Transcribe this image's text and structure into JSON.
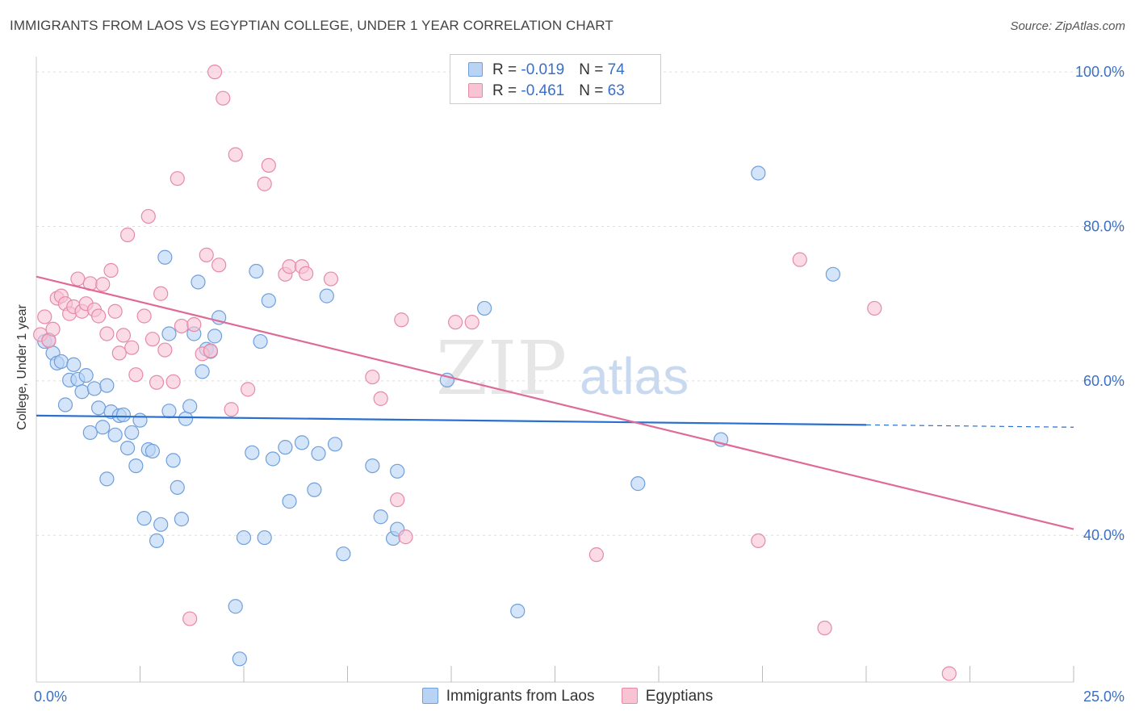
{
  "title": "IMMIGRANTS FROM LAOS VS EGYPTIAN COLLEGE, UNDER 1 YEAR CORRELATION CHART",
  "source": "Source: ZipAtlas.com",
  "watermark": {
    "zip": "ZIP",
    "atlas": "atlas"
  },
  "colors": {
    "blue_fill": "#b9d3f5",
    "blue_stroke": "#6f9fdc",
    "blue_line": "#2a6fce",
    "pink_fill": "#f8c3d3",
    "pink_stroke": "#e68aa8",
    "pink_line": "#e06a97",
    "tick_label": "#3a6fc4",
    "grid": "#dddddd"
  },
  "legend": {
    "r_label": "R = ",
    "n_label": "N = ",
    "series": [
      {
        "r": "-0.019",
        "n": "74"
      },
      {
        "r": "-0.461",
        "n": "63"
      }
    ]
  },
  "chart_data": {
    "type": "scatter",
    "title": "IMMIGRANTS FROM LAOS VS EGYPTIAN COLLEGE, UNDER 1 YEAR CORRELATION CHART",
    "xlabel": "",
    "ylabel": "College, Under 1 year",
    "xlim": [
      0,
      25
    ],
    "ylim": [
      21,
      102
    ],
    "x_tick_labels": [
      {
        "value": 0,
        "label": "0.0%"
      },
      {
        "value": 25,
        "label": "25.0%"
      }
    ],
    "y_tick_labels": [
      {
        "value": 40,
        "label": "40.0%"
      },
      {
        "value": 60,
        "label": "60.0%"
      },
      {
        "value": 80,
        "label": "80.0%"
      },
      {
        "value": 100,
        "label": "100.0%"
      }
    ],
    "x_minor_ticks": [
      2.5,
      5,
      7.5,
      10,
      12.5,
      15,
      17.5,
      20,
      22.5,
      25
    ],
    "grid": true,
    "legend_position": "top-center",
    "series": [
      {
        "name": "Immigrants from Laos",
        "r": -0.019,
        "n": 74,
        "trend": {
          "x": [
            0,
            20
          ],
          "y": [
            55.5,
            54.3
          ],
          "dashed_to": [
            25,
            54.0
          ]
        },
        "points": [
          [
            0.2,
            65.1
          ],
          [
            0.3,
            65.3
          ],
          [
            0.4,
            63.6
          ],
          [
            0.5,
            62.3
          ],
          [
            0.6,
            62.5
          ],
          [
            0.7,
            56.9
          ],
          [
            0.8,
            60.1
          ],
          [
            0.9,
            62.1
          ],
          [
            1.0,
            60.2
          ],
          [
            1.1,
            58.6
          ],
          [
            1.2,
            60.7
          ],
          [
            1.3,
            53.3
          ],
          [
            1.4,
            59.0
          ],
          [
            1.5,
            56.5
          ],
          [
            1.6,
            54.0
          ],
          [
            1.7,
            59.4
          ],
          [
            1.7,
            47.3
          ],
          [
            1.8,
            56.0
          ],
          [
            1.9,
            53.0
          ],
          [
            2.0,
            55.5
          ],
          [
            2.1,
            55.6
          ],
          [
            2.2,
            51.3
          ],
          [
            2.3,
            53.3
          ],
          [
            2.4,
            49.0
          ],
          [
            2.5,
            54.9
          ],
          [
            2.6,
            42.2
          ],
          [
            2.7,
            51.1
          ],
          [
            2.8,
            50.9
          ],
          [
            2.9,
            39.3
          ],
          [
            3.0,
            41.4
          ],
          [
            3.1,
            76.0
          ],
          [
            3.2,
            56.1
          ],
          [
            3.2,
            66.1
          ],
          [
            3.3,
            49.7
          ],
          [
            3.4,
            46.2
          ],
          [
            3.5,
            42.1
          ],
          [
            3.6,
            55.1
          ],
          [
            3.7,
            56.7
          ],
          [
            3.8,
            66.1
          ],
          [
            3.9,
            72.8
          ],
          [
            4.0,
            61.2
          ],
          [
            4.1,
            64.1
          ],
          [
            4.2,
            63.8
          ],
          [
            4.3,
            65.8
          ],
          [
            4.4,
            68.2
          ],
          [
            4.8,
            30.8
          ],
          [
            4.9,
            24.0
          ],
          [
            5.0,
            39.7
          ],
          [
            5.2,
            50.7
          ],
          [
            5.3,
            74.2
          ],
          [
            5.4,
            65.1
          ],
          [
            5.5,
            39.7
          ],
          [
            5.6,
            70.4
          ],
          [
            5.7,
            49.9
          ],
          [
            6.0,
            51.4
          ],
          [
            6.1,
            44.4
          ],
          [
            6.4,
            52.0
          ],
          [
            6.7,
            45.9
          ],
          [
            6.8,
            50.6
          ],
          [
            7.0,
            71.0
          ],
          [
            7.2,
            51.8
          ],
          [
            7.4,
            37.6
          ],
          [
            8.1,
            49.0
          ],
          [
            8.3,
            42.4
          ],
          [
            8.6,
            39.6
          ],
          [
            8.7,
            48.3
          ],
          [
            8.7,
            40.8
          ],
          [
            9.9,
            60.1
          ],
          [
            10.8,
            69.4
          ],
          [
            11.6,
            30.2
          ],
          [
            14.5,
            46.7
          ],
          [
            16.5,
            52.4
          ],
          [
            17.4,
            86.9
          ],
          [
            19.2,
            73.8
          ]
        ]
      },
      {
        "name": "Egyptians",
        "r": -0.461,
        "n": 63,
        "trend": {
          "x": [
            0,
            25
          ],
          "y": [
            73.5,
            40.8
          ]
        },
        "points": [
          [
            0.1,
            66.0
          ],
          [
            0.2,
            68.3
          ],
          [
            0.3,
            65.2
          ],
          [
            0.4,
            66.7
          ],
          [
            0.5,
            70.7
          ],
          [
            0.6,
            71.0
          ],
          [
            0.7,
            70.0
          ],
          [
            0.8,
            68.7
          ],
          [
            0.9,
            69.6
          ],
          [
            1.0,
            73.2
          ],
          [
            1.1,
            69.0
          ],
          [
            1.2,
            70.0
          ],
          [
            1.3,
            72.6
          ],
          [
            1.4,
            69.2
          ],
          [
            1.5,
            68.4
          ],
          [
            1.6,
            72.5
          ],
          [
            1.7,
            66.1
          ],
          [
            1.8,
            74.3
          ],
          [
            1.9,
            69.0
          ],
          [
            2.0,
            63.6
          ],
          [
            2.1,
            65.9
          ],
          [
            2.2,
            78.9
          ],
          [
            2.3,
            64.3
          ],
          [
            2.4,
            60.8
          ],
          [
            2.6,
            68.4
          ],
          [
            2.7,
            81.3
          ],
          [
            2.8,
            65.4
          ],
          [
            2.9,
            59.8
          ],
          [
            3.0,
            71.3
          ],
          [
            3.1,
            64.0
          ],
          [
            3.3,
            59.9
          ],
          [
            3.4,
            86.2
          ],
          [
            3.5,
            67.1
          ],
          [
            3.7,
            29.2
          ],
          [
            3.8,
            67.3
          ],
          [
            4.0,
            63.5
          ],
          [
            4.1,
            76.3
          ],
          [
            4.2,
            63.9
          ],
          [
            4.3,
            100.0
          ],
          [
            4.4,
            75.0
          ],
          [
            4.5,
            96.6
          ],
          [
            4.7,
            56.3
          ],
          [
            4.8,
            89.3
          ],
          [
            5.1,
            58.9
          ],
          [
            5.5,
            85.5
          ],
          [
            5.6,
            87.9
          ],
          [
            6.0,
            73.8
          ],
          [
            6.1,
            74.8
          ],
          [
            6.4,
            74.8
          ],
          [
            6.5,
            73.9
          ],
          [
            7.1,
            73.2
          ],
          [
            8.1,
            60.5
          ],
          [
            8.3,
            57.7
          ],
          [
            8.7,
            44.6
          ],
          [
            8.8,
            67.9
          ],
          [
            8.9,
            39.8
          ],
          [
            10.1,
            67.6
          ],
          [
            10.5,
            67.6
          ],
          [
            13.5,
            37.5
          ],
          [
            17.4,
            39.3
          ],
          [
            18.4,
            75.7
          ],
          [
            19.0,
            28.0
          ],
          [
            20.2,
            69.4
          ],
          [
            22.0,
            22.1
          ]
        ]
      }
    ]
  },
  "bottom_legend": [
    "Immigrants from Laos",
    "Egyptians"
  ]
}
